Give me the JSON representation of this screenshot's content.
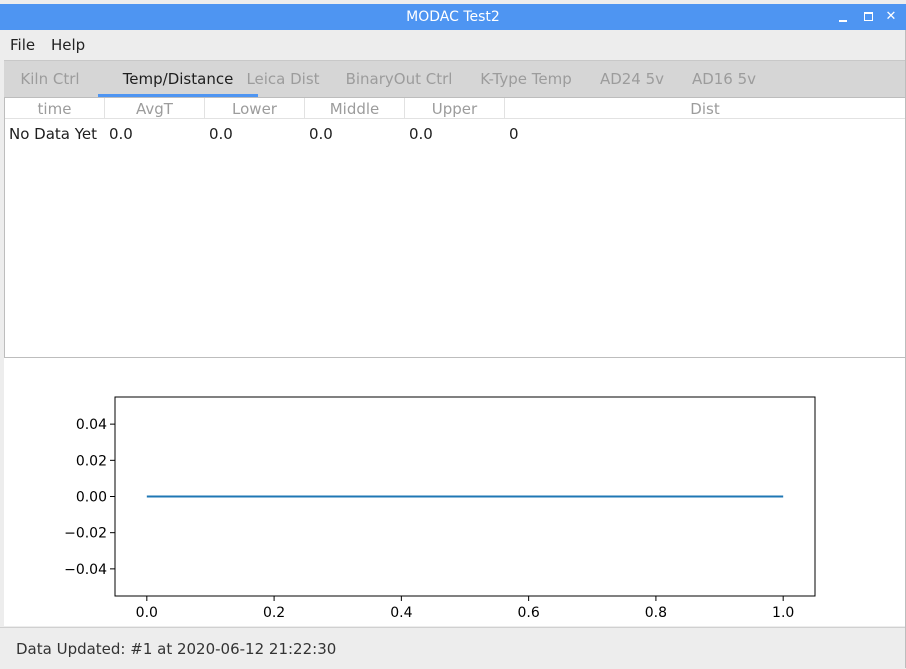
{
  "window": {
    "title": "MODAC Test2",
    "controls": {
      "minimize": "minimize-icon",
      "maximize": "maximize-icon",
      "close": "✕"
    }
  },
  "menu": [
    "File",
    "Help"
  ],
  "tabs": [
    {
      "label": "Kiln Ctrl",
      "active": false
    },
    {
      "label": "Temp/Distance",
      "active": true
    },
    {
      "label": "Leica Dist",
      "active": false
    },
    {
      "label": "BinaryOut Ctrl",
      "active": false
    },
    {
      "label": "K-Type Temp",
      "active": false
    },
    {
      "label": "AD24 5v",
      "active": false
    },
    {
      "label": "AD16 5v",
      "active": false
    }
  ],
  "table": {
    "columns": [
      "time",
      "AvgT",
      "Lower",
      "Middle",
      "Upper",
      "Dist"
    ],
    "rows": [
      [
        "No Data Yet",
        "0.0",
        "0.0",
        "0.0",
        "0.0",
        "0"
      ]
    ]
  },
  "chart_data": {
    "type": "line",
    "x": [
      0.0,
      1.0
    ],
    "series": [
      {
        "values": [
          0.0,
          0.0
        ],
        "color": "#1f77b4"
      }
    ],
    "xlim": [
      -0.05,
      1.05
    ],
    "ylim": [
      -0.055,
      0.055
    ],
    "xticks": [
      "0.0",
      "0.2",
      "0.4",
      "0.6",
      "0.8",
      "1.0"
    ],
    "yticks": [
      "0.04",
      "0.02",
      "0.00",
      "−0.02",
      "−0.04"
    ],
    "grid": false
  },
  "status": "Data Updated: #1 at 2020-06-12 21:22:30",
  "colors": {
    "titlebar": "#4e95f2",
    "accent": "#4e95f2",
    "line": "#1f77b4"
  }
}
